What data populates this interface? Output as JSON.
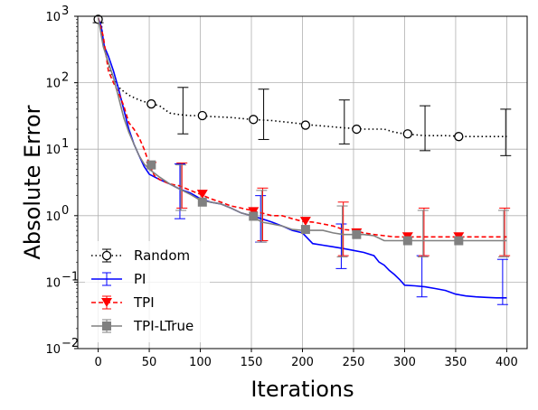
{
  "chart_data": {
    "type": "line",
    "xlabel": "Iterations",
    "ylabel": "Absolute Error",
    "xlim": [
      -20,
      420
    ],
    "ylim": [
      0.01,
      1000
    ],
    "yscale": "log",
    "grid": true,
    "legend_position": "lower-left",
    "x_ticks": [
      0,
      50,
      100,
      150,
      200,
      250,
      300,
      350,
      400
    ],
    "x_tick_labels": [
      "0",
      "50",
      "100",
      "150",
      "200",
      "250",
      "300",
      "350",
      "400"
    ],
    "y_ticks": [
      0.01,
      0.1,
      1,
      10,
      100,
      1000
    ],
    "y_tick_labels": [
      "10",
      "10",
      "10",
      "10",
      "10",
      "10"
    ],
    "y_tick_exponents": [
      "−2",
      "−1",
      "0",
      "1",
      "2",
      "3"
    ],
    "series": [
      {
        "name": "Random",
        "color": "#000000",
        "linestyle": "dotted",
        "marker": "open-circle",
        "curve": [
          [
            0,
            900
          ],
          [
            3,
            800
          ],
          [
            5,
            400
          ],
          [
            8,
            250
          ],
          [
            12,
            150
          ],
          [
            17,
            100
          ],
          [
            22,
            80
          ],
          [
            30,
            65
          ],
          [
            40,
            55
          ],
          [
            52,
            48
          ],
          [
            60,
            45
          ],
          [
            70,
            35
          ],
          [
            80,
            33
          ],
          [
            90,
            32
          ],
          [
            100,
            32
          ],
          [
            110,
            31
          ],
          [
            130,
            30
          ],
          [
            150,
            28
          ],
          [
            170,
            27
          ],
          [
            190,
            25
          ],
          [
            210,
            23
          ],
          [
            225,
            22
          ],
          [
            240,
            21
          ],
          [
            260,
            20
          ],
          [
            280,
            20
          ],
          [
            290,
            18
          ],
          [
            300,
            17
          ],
          [
            320,
            16
          ],
          [
            340,
            16
          ],
          [
            360,
            15.5
          ],
          [
            380,
            15.5
          ],
          [
            400,
            15.5
          ]
        ],
        "markers": [
          [
            0,
            900
          ],
          [
            52,
            48
          ],
          [
            102,
            32
          ],
          [
            152,
            28
          ],
          [
            203,
            23
          ],
          [
            253,
            20
          ],
          [
            303,
            17
          ],
          [
            353,
            15.5
          ]
        ],
        "errorbars": [
          {
            "x": 0,
            "y": 900,
            "low": 800,
            "high": 1000
          },
          {
            "x": 83,
            "y": 35,
            "low": 17,
            "high": 85
          },
          {
            "x": 162,
            "y": 33,
            "low": 14,
            "high": 80
          },
          {
            "x": 241,
            "y": 25,
            "low": 12,
            "high": 55
          },
          {
            "x": 320,
            "y": 20,
            "low": 9.5,
            "high": 45
          },
          {
            "x": 399,
            "y": 18,
            "low": 8,
            "high": 40
          }
        ]
      },
      {
        "name": "PI",
        "color": "#0000ff",
        "linestyle": "solid",
        "marker": "none",
        "curve": [
          [
            0,
            950
          ],
          [
            3,
            700
          ],
          [
            6,
            350
          ],
          [
            10,
            250
          ],
          [
            15,
            150
          ],
          [
            20,
            80
          ],
          [
            25,
            40
          ],
          [
            30,
            20
          ],
          [
            35,
            12
          ],
          [
            40,
            8
          ],
          [
            45,
            5.5
          ],
          [
            50,
            4.2
          ],
          [
            60,
            3.5
          ],
          [
            70,
            3
          ],
          [
            80,
            2.5
          ],
          [
            90,
            2.2
          ],
          [
            100,
            1.8
          ],
          [
            110,
            1.6
          ],
          [
            120,
            1.5
          ],
          [
            130,
            1.3
          ],
          [
            140,
            1.1
          ],
          [
            150,
            1
          ],
          [
            160,
            0.9
          ],
          [
            170,
            0.8
          ],
          [
            180,
            0.7
          ],
          [
            190,
            0.6
          ],
          [
            200,
            0.55
          ],
          [
            210,
            0.38
          ],
          [
            220,
            0.36
          ],
          [
            230,
            0.34
          ],
          [
            240,
            0.32
          ],
          [
            250,
            0.3
          ],
          [
            260,
            0.28
          ],
          [
            270,
            0.25
          ],
          [
            275,
            0.2
          ],
          [
            280,
            0.18
          ],
          [
            285,
            0.15
          ],
          [
            290,
            0.13
          ],
          [
            295,
            0.11
          ],
          [
            300,
            0.09
          ],
          [
            310,
            0.088
          ],
          [
            320,
            0.085
          ],
          [
            330,
            0.08
          ],
          [
            340,
            0.075
          ],
          [
            350,
            0.066
          ],
          [
            360,
            0.062
          ],
          [
            370,
            0.06
          ],
          [
            380,
            0.059
          ],
          [
            390,
            0.058
          ],
          [
            400,
            0.058
          ]
        ],
        "errorbars": [
          {
            "x": 80,
            "y": 2.5,
            "low": 0.9,
            "high": 6
          },
          {
            "x": 159,
            "y": 1,
            "low": 0.4,
            "high": 2
          },
          {
            "x": 238,
            "y": 0.33,
            "low": 0.16,
            "high": 0.75
          },
          {
            "x": 317,
            "y": 0.12,
            "low": 0.06,
            "high": 0.25
          },
          {
            "x": 396,
            "y": 0.06,
            "low": 0.046,
            "high": 0.22
          }
        ]
      },
      {
        "name": "TPI",
        "color": "#ff0000",
        "linestyle": "dashed",
        "marker": "triangle-down",
        "curve": [
          [
            0,
            950
          ],
          [
            5,
            500
          ],
          [
            10,
            150
          ],
          [
            15,
            100
          ],
          [
            20,
            70
          ],
          [
            25,
            45
          ],
          [
            30,
            25
          ],
          [
            35,
            20
          ],
          [
            40,
            15
          ],
          [
            45,
            10
          ],
          [
            50,
            6
          ],
          [
            55,
            4
          ],
          [
            60,
            3.5
          ],
          [
            70,
            3
          ],
          [
            80,
            2.8
          ],
          [
            90,
            2.4
          ],
          [
            100,
            2.1
          ],
          [
            110,
            1.8
          ],
          [
            120,
            1.6
          ],
          [
            130,
            1.4
          ],
          [
            140,
            1.3
          ],
          [
            150,
            1.2
          ],
          [
            160,
            1.1
          ],
          [
            170,
            1
          ],
          [
            180,
            1
          ],
          [
            190,
            0.9
          ],
          [
            200,
            0.82
          ],
          [
            210,
            0.8
          ],
          [
            220,
            0.75
          ],
          [
            230,
            0.7
          ],
          [
            240,
            0.62
          ],
          [
            250,
            0.6
          ],
          [
            260,
            0.55
          ],
          [
            270,
            0.52
          ],
          [
            280,
            0.5
          ],
          [
            290,
            0.48
          ],
          [
            300,
            0.48
          ],
          [
            350,
            0.48
          ],
          [
            400,
            0.48
          ]
        ],
        "markers": [
          [
            52,
            5.5
          ],
          [
            102,
            2.1
          ],
          [
            152,
            1.15
          ],
          [
            203,
            0.82
          ],
          [
            253,
            0.55
          ],
          [
            303,
            0.48
          ],
          [
            353,
            0.48
          ]
        ],
        "errorbars": [
          {
            "x": 82,
            "y": 2.8,
            "low": 1.3,
            "high": 6.2
          },
          {
            "x": 161,
            "y": 1.1,
            "low": 0.42,
            "high": 2.6
          },
          {
            "x": 240,
            "y": 0.62,
            "low": 0.25,
            "high": 1.6
          },
          {
            "x": 319,
            "y": 0.5,
            "low": 0.25,
            "high": 1.3
          },
          {
            "x": 398,
            "y": 0.48,
            "low": 0.25,
            "high": 1.3
          }
        ]
      },
      {
        "name": "TPI-LTrue",
        "color": "#808080",
        "linestyle": "solid",
        "marker": "square",
        "curve": [
          [
            0,
            950
          ],
          [
            5,
            350
          ],
          [
            10,
            200
          ],
          [
            15,
            120
          ],
          [
            20,
            60
          ],
          [
            25,
            30
          ],
          [
            30,
            18
          ],
          [
            35,
            12
          ],
          [
            40,
            8
          ],
          [
            45,
            6
          ],
          [
            50,
            5
          ],
          [
            60,
            3.8
          ],
          [
            70,
            3
          ],
          [
            80,
            2.5
          ],
          [
            90,
            2.1
          ],
          [
            100,
            1.7
          ],
          [
            110,
            1.6
          ],
          [
            120,
            1.5
          ],
          [
            130,
            1.3
          ],
          [
            140,
            1.1
          ],
          [
            150,
            1
          ],
          [
            160,
            0.8
          ],
          [
            170,
            0.75
          ],
          [
            180,
            0.7
          ],
          [
            190,
            0.62
          ],
          [
            200,
            0.6
          ],
          [
            210,
            0.6
          ],
          [
            220,
            0.6
          ],
          [
            230,
            0.55
          ],
          [
            240,
            0.52
          ],
          [
            250,
            0.52
          ],
          [
            260,
            0.52
          ],
          [
            270,
            0.5
          ],
          [
            280,
            0.42
          ],
          [
            300,
            0.42
          ],
          [
            350,
            0.42
          ],
          [
            400,
            0.42
          ]
        ],
        "markers": [
          [
            52,
            5.8
          ],
          [
            102,
            1.6
          ],
          [
            152,
            0.98
          ],
          [
            203,
            0.62
          ],
          [
            253,
            0.52
          ],
          [
            303,
            0.42
          ],
          [
            353,
            0.42
          ]
        ],
        "errorbars": [
          {
            "x": 81,
            "y": 2.5,
            "low": 1.2,
            "high": 5.8
          },
          {
            "x": 160,
            "y": 0.9,
            "low": 0.4,
            "high": 2.4
          },
          {
            "x": 239,
            "y": 0.52,
            "low": 0.24,
            "high": 1.4
          },
          {
            "x": 318,
            "y": 0.42,
            "low": 0.24,
            "high": 1.2
          },
          {
            "x": 397,
            "y": 0.42,
            "low": 0.24,
            "high": 1.2
          }
        ]
      }
    ]
  }
}
